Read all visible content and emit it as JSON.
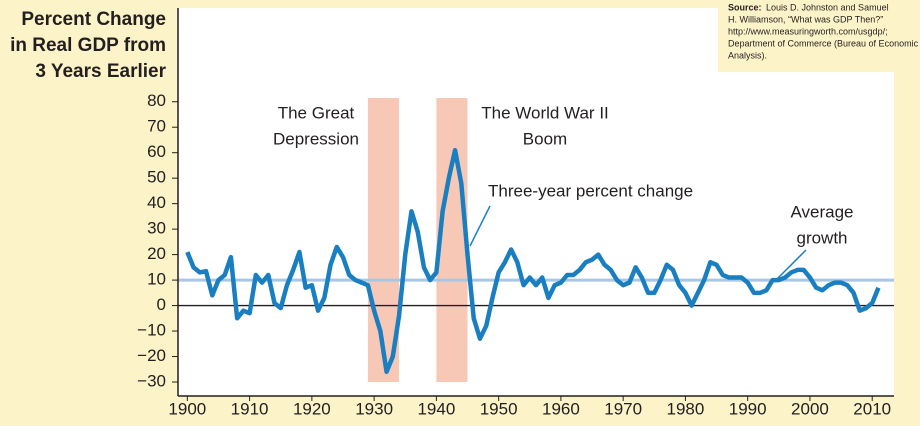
{
  "chart_data": {
    "type": "line",
    "y_axis_title": [
      "Percent Change",
      "in Real GDP from",
      "3 Years Earlier"
    ],
    "source_label": "Source:",
    "source_text": [
      "Louis D. Johnston and Samuel",
      "H. Williamson, “What was GDP Then?”",
      "http://www.measuringworth.com/usgdp/;",
      "Department of Commerce (Bureau of Economic",
      "Analysis)."
    ],
    "x": [
      1900,
      1901,
      1902,
      1903,
      1904,
      1905,
      1906,
      1907,
      1908,
      1909,
      1910,
      1911,
      1912,
      1913,
      1914,
      1915,
      1916,
      1917,
      1918,
      1919,
      1920,
      1921,
      1922,
      1923,
      1924,
      1925,
      1926,
      1927,
      1928,
      1929,
      1930,
      1931,
      1932,
      1933,
      1934,
      1935,
      1936,
      1937,
      1938,
      1939,
      1940,
      1941,
      1942,
      1943,
      1944,
      1945,
      1946,
      1947,
      1948,
      1949,
      1950,
      1951,
      1952,
      1953,
      1954,
      1955,
      1956,
      1957,
      1958,
      1959,
      1960,
      1961,
      1962,
      1963,
      1964,
      1965,
      1966,
      1967,
      1968,
      1969,
      1970,
      1971,
      1972,
      1973,
      1974,
      1975,
      1976,
      1977,
      1978,
      1979,
      1980,
      1981,
      1982,
      1983,
      1984,
      1985,
      1986,
      1987,
      1988,
      1989,
      1990,
      1991,
      1992,
      1993,
      1994,
      1995,
      1996,
      1997,
      1998,
      1999,
      2000,
      2001,
      2002,
      2003,
      2004,
      2005,
      2006,
      2007,
      2008,
      2009,
      2010,
      2011
    ],
    "series": [
      {
        "name": "Three-year percent change",
        "color": "#1a7fc1",
        "values": [
          21,
          15,
          13,
          13.5,
          4,
          10,
          12,
          19,
          -5,
          -2,
          -3,
          12,
          9,
          12,
          1,
          -1,
          8,
          14,
          21,
          7,
          8,
          -2,
          3,
          16,
          23,
          19,
          12,
          10,
          9,
          8,
          -2,
          -10,
          -26,
          -20,
          -4,
          20,
          37,
          29,
          15,
          10,
          13,
          37,
          50,
          61,
          48,
          20,
          -5,
          -13,
          -8,
          3,
          13,
          17,
          22,
          17,
          8,
          11,
          8,
          11,
          3,
          8,
          9,
          12,
          12,
          14,
          17,
          18,
          20,
          16,
          14,
          10,
          8,
          9,
          15,
          11,
          5,
          5,
          10,
          16,
          14,
          8,
          5,
          0,
          5,
          10,
          17,
          16,
          12,
          11,
          11,
          11,
          9,
          5,
          5,
          6,
          10,
          10,
          11,
          13,
          14,
          14,
          11,
          7,
          6,
          8,
          9,
          9,
          8,
          5,
          -2,
          -1,
          1,
          7
        ]
      }
    ],
    "average": {
      "value": 10,
      "label": [
        "Average",
        "growth"
      ],
      "color": "#a9c6e4"
    },
    "shaded_regions": [
      {
        "xlim": [
          1929,
          1934
        ],
        "label": [
          "The Great",
          "Depression"
        ]
      },
      {
        "xlim": [
          1940,
          1945
        ],
        "label": [
          "The World War II",
          "Boom"
        ]
      }
    ],
    "shade_color": "#f8c8b6",
    "xlim": [
      1898.5,
      2013.5
    ],
    "ylim": [
      -30,
      85
    ],
    "xticks": [
      1900,
      1910,
      1920,
      1930,
      1940,
      1950,
      1960,
      1970,
      1980,
      1990,
      2000,
      2010
    ],
    "yticks": [
      {
        "value": -30,
        "label": "−30"
      },
      {
        "value": -20,
        "label": "−20"
      },
      {
        "value": -10,
        "label": "−10"
      },
      0,
      10,
      20,
      30,
      40,
      50,
      60,
      70,
      80
    ]
  }
}
